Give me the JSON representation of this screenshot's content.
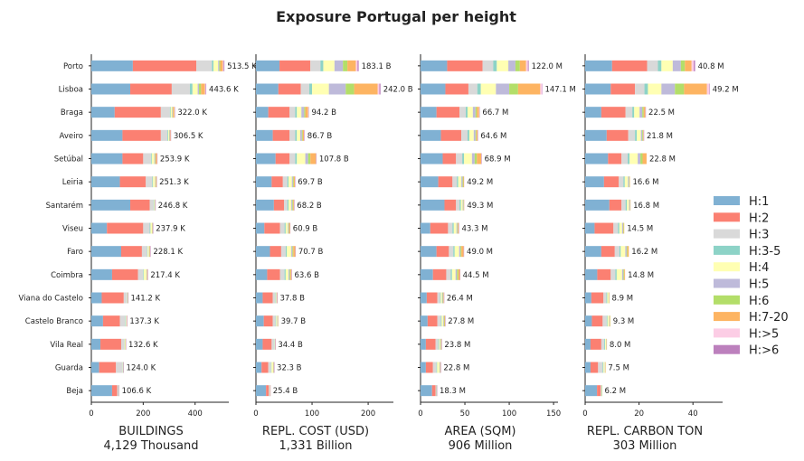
{
  "title": "Exposure Portugal per height",
  "chart_data": {
    "type": "bar",
    "orientation": "horizontal",
    "stacked": true,
    "title": "Exposure Portugal per height",
    "categories": [
      "Porto",
      "Lisboa",
      "Braga",
      "Aveiro",
      "Setúbal",
      "Leiria",
      "Santarém",
      "Viseu",
      "Faro",
      "Coimbra",
      "Viana do Castelo",
      "Castelo Branco",
      "Vila Real",
      "Guarda",
      "Beja"
    ],
    "legend": [
      {
        "name": "H:1",
        "color": "#80b1d3"
      },
      {
        "name": "H:2",
        "color": "#fb8072"
      },
      {
        "name": "H:3",
        "color": "#d9d9d9"
      },
      {
        "name": "H:3-5",
        "color": "#8dd3c7"
      },
      {
        "name": "H:4",
        "color": "#ffffb3"
      },
      {
        "name": "H:5",
        "color": "#bebada"
      },
      {
        "name": "H:6",
        "color": "#b3de69"
      },
      {
        "name": "H:7-20",
        "color": "#fdb462"
      },
      {
        "name": "H:>5",
        "color": "#fccde5"
      },
      {
        "name": "H:>6",
        "color": "#bc80bd"
      }
    ],
    "legend_position": "right",
    "panels": [
      {
        "xlabel": "BUILDINGS",
        "sublabel": "4,129 Thousand",
        "xlim": [
          0,
          530
        ],
        "xticks": [
          0,
          200,
          400
        ],
        "labels": [
          "513.5 K",
          "443.6 K",
          "322.0 K",
          "306.5 K",
          "253.9 K",
          "251.3 K",
          "246.8 K",
          "237.9 K",
          "228.1 K",
          "217.4 K",
          "141.2 K",
          "137.3 K",
          "132.6 K",
          "124.0 K",
          "106.6 K"
        ],
        "values": [
          [
            160,
            245,
            60,
            6,
            18,
            4,
            4,
            10,
            3,
            3
          ],
          [
            150,
            160,
            70,
            10,
            20,
            5,
            8,
            15,
            3,
            2
          ],
          [
            90,
            178,
            35,
            3,
            5,
            2,
            2,
            5,
            1,
            1
          ],
          [
            120,
            148,
            25,
            3,
            4,
            2,
            1,
            2,
            1,
            0.5
          ],
          [
            120,
            80,
            30,
            3,
            10,
            3,
            2,
            5,
            0.5,
            0.4
          ],
          [
            110,
            100,
            25,
            3,
            8,
            2,
            1,
            2,
            0.2,
            0.1
          ],
          [
            150,
            75,
            15,
            2,
            3,
            0.5,
            0.5,
            0.5,
            0.2,
            0.1
          ],
          [
            60,
            140,
            25,
            3,
            6,
            1,
            1,
            1,
            0.5,
            0.4
          ],
          [
            115,
            80,
            20,
            2,
            5,
            2,
            1,
            2,
            0.5,
            0.6
          ],
          [
            80,
            100,
            20,
            2,
            10,
            2,
            1,
            2,
            0.2,
            0.2
          ],
          [
            40,
            85,
            12,
            1,
            2,
            0.5,
            0.3,
            0.2,
            0.1,
            0.1
          ],
          [
            45,
            65,
            20,
            2,
            3,
            1,
            0.5,
            0.5,
            0.2,
            0.1
          ],
          [
            35,
            80,
            12,
            1,
            3,
            0.5,
            0.5,
            0.3,
            0.2,
            0.1
          ],
          [
            30,
            65,
            25,
            1,
            2,
            0.5,
            0.3,
            0.1,
            0.05,
            0.05
          ],
          [
            80,
            20,
            4,
            1,
            1,
            0.3,
            0.2,
            0.05,
            0.03,
            0.02
          ]
        ]
      },
      {
        "xlabel": "REPL. COST (USD)",
        "sublabel": "1,331 Billion",
        "xlim": [
          0,
          245
        ],
        "xticks": [
          0,
          100,
          200
        ],
        "labels": [
          "183.1 B",
          "242.0 B",
          "94.2 B",
          "86.7 B",
          "107.8 B",
          "69.7 B",
          "68.2 B",
          "60.9 B",
          "70.7 B",
          "63.6 B",
          "37.8 B",
          "39.7 B",
          "34.4 B",
          "32.3 B",
          "25.4 B"
        ],
        "values": [
          [
            42,
            55,
            18,
            5,
            20,
            15,
            8,
            15,
            3,
            2.1
          ],
          [
            40,
            40,
            15,
            5,
            30,
            30,
            15,
            42,
            3,
            2
          ],
          [
            22,
            38,
            10,
            3,
            8,
            5,
            2,
            5,
            0.7,
            0.5
          ],
          [
            30,
            30,
            10,
            3,
            6,
            3,
            1.5,
            2,
            0.7,
            0.5
          ],
          [
            35,
            25,
            10,
            3,
            15,
            5,
            4,
            10,
            0.4,
            0.4
          ],
          [
            28,
            20,
            8,
            2,
            6,
            2,
            1.5,
            2,
            0.1,
            0.1
          ],
          [
            32,
            18,
            6,
            2,
            5,
            2,
            1.5,
            1.5,
            0.1,
            0.1
          ],
          [
            15,
            28,
            8,
            2,
            4,
            1,
            1,
            1.5,
            0.2,
            0.2
          ],
          [
            25,
            20,
            8,
            2,
            8,
            2,
            1.5,
            3.5,
            0.3,
            0.4
          ],
          [
            20,
            23,
            8,
            2,
            5,
            2,
            1.5,
            1.8,
            0.2,
            0.1
          ],
          [
            12,
            18,
            4,
            1,
            1.5,
            0.5,
            0.4,
            0.3,
            0.05,
            0.05
          ],
          [
            14,
            16,
            5,
            1,
            2,
            0.7,
            0.5,
            0.4,
            0.1,
            0
          ],
          [
            12,
            16,
            4,
            0.8,
            0.8,
            0.4,
            0.2,
            0.1,
            0.05,
            0.05
          ],
          [
            10,
            12,
            5,
            0.8,
            3,
            0.6,
            0.4,
            0.4,
            0.05,
            0.05
          ],
          [
            18,
            5,
            1,
            0.5,
            0.5,
            0.2,
            0.1,
            0.05,
            0.03,
            0.02
          ]
        ]
      },
      {
        "xlabel": "AREA (SQM)",
        "sublabel": "906 Million",
        "xlim": [
          0,
          155
        ],
        "xticks": [
          0,
          50,
          100,
          150
        ],
        "labels": [
          "122.0 M",
          "147.1 M",
          "66.7 M",
          "64.6 M",
          "68.9 M",
          "49.2 M",
          "49.3 M",
          "43.3 M",
          "49.0 M",
          "44.5 M",
          "26.4 M",
          "27.8 M",
          "23.8 M",
          "22.8 M",
          "18.3 M"
        ],
        "values": [
          [
            30,
            40,
            12,
            4,
            13,
            8,
            5,
            7,
            2,
            1
          ],
          [
            28,
            26,
            10,
            4,
            17,
            15,
            10,
            25,
            2,
            0.1
          ],
          [
            18,
            26,
            7,
            2,
            6,
            3,
            1.5,
            2.5,
            0.4,
            0.3
          ],
          [
            23,
            23,
            7,
            2,
            5,
            2,
            1,
            1.2,
            0.3,
            0.1
          ],
          [
            25,
            15,
            7,
            2,
            9,
            3,
            2.5,
            5,
            0.2,
            0.2
          ],
          [
            20,
            16,
            5,
            1.5,
            3.5,
            1.5,
            0.9,
            0.7,
            0.1,
            0
          ],
          [
            27,
            13,
            4,
            1.5,
            2,
            0.8,
            0.5,
            0.4,
            0.1,
            0
          ],
          [
            11,
            20,
            5,
            1.5,
            3,
            1,
            0.7,
            0.8,
            0.2,
            0.1
          ],
          [
            18,
            14,
            5,
            1.5,
            5,
            1.5,
            1,
            2.5,
            0.2,
            0.3
          ],
          [
            14,
            15,
            5,
            1.5,
            4,
            1.5,
            1.5,
            1.8,
            0.1,
            0.1
          ],
          [
            7,
            12,
            3,
            0.8,
            1.5,
            0.7,
            0.7,
            0.6,
            0.05,
            0.05
          ],
          [
            8,
            11,
            4,
            0.8,
            1.8,
            0.7,
            0.7,
            0.7,
            0.05,
            0.05
          ],
          [
            6,
            11,
            3,
            0.8,
            1.2,
            0.6,
            0.6,
            0.5,
            0.05,
            0.05
          ],
          [
            6,
            8,
            4,
            0.7,
            2.5,
            0.6,
            0.5,
            0.4,
            0.05,
            0.05
          ],
          [
            13,
            4,
            0.5,
            0.3,
            0.2,
            0.1,
            0.1,
            0.05,
            0.03,
            0.02
          ]
        ]
      },
      {
        "xlabel": "REPL. CARBON TON",
        "sublabel": "303 Million",
        "xlim": [
          0,
          51
        ],
        "xticks": [
          0,
          20,
          40
        ],
        "labels": [
          "40.8 M",
          "49.2 M",
          "22.5 M",
          "21.8 M",
          "22.8 M",
          "16.6 M",
          "16.8 M",
          "14.5 M",
          "16.2 M",
          "14.8 M",
          "8.9 M",
          "9.3 M",
          "8.0 M",
          "7.5 M",
          "6.2 M"
        ],
        "values": [
          [
            10,
            13,
            4,
            1.3,
            4.2,
            3,
            1.5,
            2.5,
            0.8,
            0.5
          ],
          [
            9.5,
            9,
            3.5,
            1.3,
            5,
            5,
            3.4,
            8.5,
            0.8,
            0.2
          ],
          [
            6,
            9,
            2.5,
            0.7,
            2,
            1,
            0.5,
            0.6,
            0.1,
            0.1
          ],
          [
            8,
            8,
            2.5,
            0.7,
            1.5,
            0.5,
            0.3,
            0.2,
            0.05,
            0.05
          ],
          [
            8.5,
            5,
            2.3,
            0.7,
            3,
            1,
            0.8,
            1.5,
            0,
            0
          ],
          [
            7,
            5.5,
            1.7,
            0.5,
            1.2,
            0.4,
            0.2,
            0.1,
            0,
            0
          ],
          [
            9,
            4.5,
            1.5,
            0.5,
            0.8,
            0.3,
            0.1,
            0.1,
            0,
            0
          ],
          [
            3.5,
            7,
            1.7,
            0.5,
            1,
            0.4,
            0.2,
            0.2,
            0,
            0
          ],
          [
            6,
            5,
            1.7,
            0.5,
            1.7,
            0.5,
            0.3,
            0.5,
            0,
            0
          ],
          [
            4.5,
            5,
            1.7,
            0.5,
            2,
            0.5,
            0.3,
            0.3,
            0,
            0
          ],
          [
            2.3,
            4.5,
            1.1,
            0.3,
            0.5,
            0.1,
            0.05,
            0.05,
            0,
            0
          ],
          [
            2.5,
            4,
            1.5,
            0.3,
            0.6,
            0.2,
            0.1,
            0.1,
            0,
            0
          ],
          [
            2,
            4,
            1.1,
            0.3,
            0.4,
            0.1,
            0.05,
            0.05,
            0,
            0
          ],
          [
            2,
            2.8,
            1.7,
            0.3,
            0.5,
            0.1,
            0.05,
            0.05,
            0,
            0
          ],
          [
            4.4,
            1.4,
            0.2,
            0.1,
            0.05,
            0.03,
            0.02,
            0,
            0,
            0
          ]
        ]
      }
    ]
  }
}
